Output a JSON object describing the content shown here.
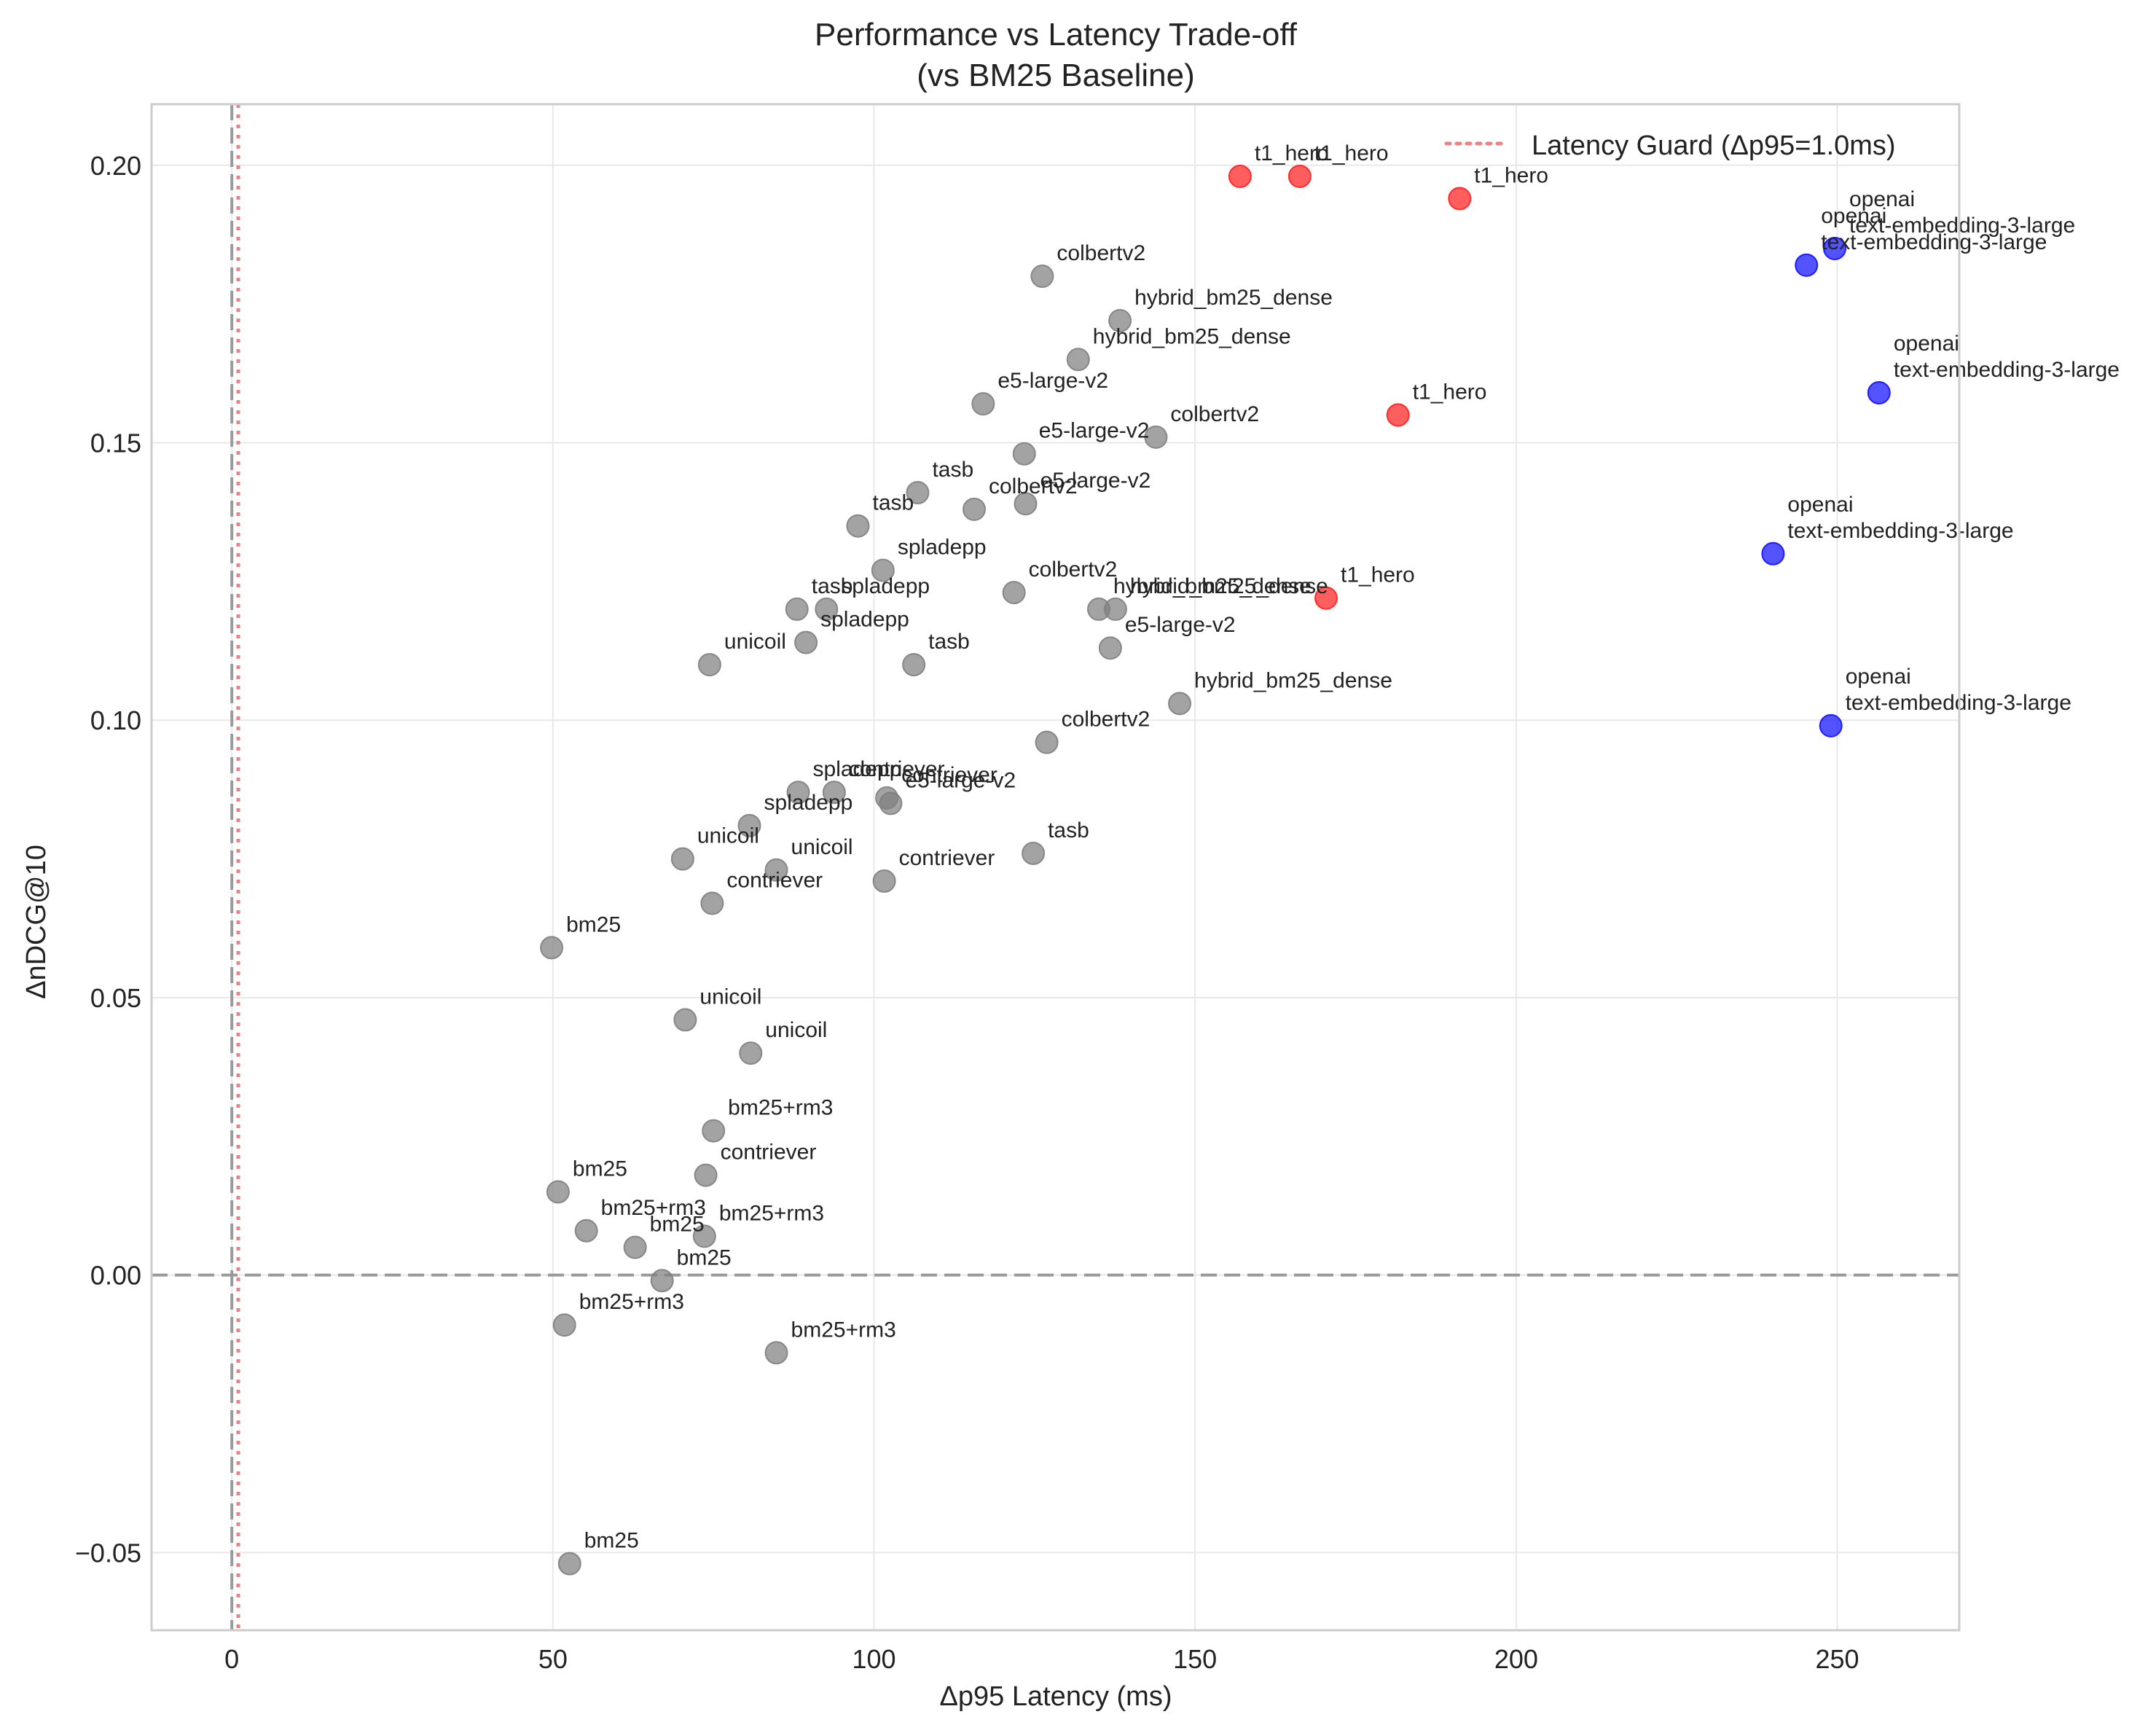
{
  "chart_data": {
    "type": "scatter",
    "title": "Performance vs Latency Trade-off",
    "subtitle": "(vs BM25 Baseline)",
    "xlabel": "Δp95 Latency (ms)",
    "ylabel": "ΔnDCG@10",
    "xlim": [
      -12.5,
      269
    ],
    "ylim": [
      -0.064,
      0.211
    ],
    "xticks": [
      0,
      50,
      100,
      150,
      200,
      250
    ],
    "xtick_labels": [
      "0",
      "50",
      "100",
      "150",
      "200",
      "250"
    ],
    "yticks": [
      -0.05,
      0.0,
      0.05,
      0.1,
      0.15,
      0.2
    ],
    "ytick_labels": [
      "−0.05",
      "0.00",
      "0.05",
      "0.10",
      "0.15",
      "0.20"
    ],
    "grid": true,
    "legend": {
      "position": "top-right",
      "entries": [
        "Latency Guard (Δp95=1.0ms)"
      ]
    },
    "reference_lines": [
      {
        "orientation": "horizontal",
        "value": 0,
        "style": "dashed",
        "color": "#9a9a9a"
      },
      {
        "orientation": "vertical",
        "value": 0,
        "style": "dashed",
        "color": "#9a9a9a"
      },
      {
        "orientation": "vertical",
        "value": 1.0,
        "style": "dotted",
        "color": "#f08080",
        "legend": "Latency Guard (Δp95=1.0ms)"
      }
    ],
    "colors": {
      "t1_hero": "#ff2020",
      "openai": "#1010ff",
      "other": "#808080"
    },
    "points": [
      {
        "x": 157.0,
        "y": 0.198,
        "label": "t1_hero",
        "group": "t1_hero"
      },
      {
        "x": 166.3,
        "y": 0.198,
        "label": "t1_hero",
        "group": "t1_hero"
      },
      {
        "x": 191.2,
        "y": 0.194,
        "label": "t1_hero",
        "group": "t1_hero"
      },
      {
        "x": 181.6,
        "y": 0.155,
        "label": "t1_hero",
        "group": "t1_hero"
      },
      {
        "x": 170.4,
        "y": 0.122,
        "label": "t1_hero",
        "group": "t1_hero"
      },
      {
        "x": 249.6,
        "y": 0.185,
        "label": "openai\ntext-embedding-3-large",
        "group": "openai"
      },
      {
        "x": 245.2,
        "y": 0.182,
        "label": "openai\ntext-embedding-3-large",
        "group": "openai"
      },
      {
        "x": 256.5,
        "y": 0.159,
        "label": "openai\ntext-embedding-3-large",
        "group": "openai"
      },
      {
        "x": 240.0,
        "y": 0.13,
        "label": "openai\ntext-embedding-3-large",
        "group": "openai"
      },
      {
        "x": 249.0,
        "y": 0.099,
        "label": "openai\ntext-embedding-3-large",
        "group": "openai"
      },
      {
        "x": 126.2,
        "y": 0.18,
        "label": "colbertv2",
        "group": "other"
      },
      {
        "x": 138.3,
        "y": 0.172,
        "label": "hybrid_bm25_dense",
        "group": "other"
      },
      {
        "x": 131.8,
        "y": 0.165,
        "label": "hybrid_bm25_dense",
        "group": "other"
      },
      {
        "x": 117.0,
        "y": 0.157,
        "label": "e5-large-v2",
        "group": "other"
      },
      {
        "x": 143.9,
        "y": 0.151,
        "label": "colbertv2",
        "group": "other"
      },
      {
        "x": 123.4,
        "y": 0.148,
        "label": "e5-large-v2",
        "group": "other"
      },
      {
        "x": 106.8,
        "y": 0.141,
        "label": "tasb",
        "group": "other"
      },
      {
        "x": 115.6,
        "y": 0.138,
        "label": "colbertv2",
        "group": "other"
      },
      {
        "x": 123.6,
        "y": 0.139,
        "label": "e5-large-v2",
        "group": "other"
      },
      {
        "x": 97.5,
        "y": 0.135,
        "label": "tasb",
        "group": "other"
      },
      {
        "x": 101.4,
        "y": 0.127,
        "label": "spladepp",
        "group": "other"
      },
      {
        "x": 121.8,
        "y": 0.123,
        "label": "colbertv2",
        "group": "other"
      },
      {
        "x": 88.0,
        "y": 0.12,
        "label": "tasb",
        "group": "other"
      },
      {
        "x": 92.6,
        "y": 0.12,
        "label": "spladepp",
        "group": "other"
      },
      {
        "x": 135.0,
        "y": 0.12,
        "label": "hybrid_bm25_dense",
        "group": "other"
      },
      {
        "x": 137.6,
        "y": 0.12,
        "label": "hybrid_bm25_dense",
        "group": "other"
      },
      {
        "x": 89.4,
        "y": 0.114,
        "label": "spladepp",
        "group": "other"
      },
      {
        "x": 136.8,
        "y": 0.113,
        "label": "e5-large-v2",
        "group": "other"
      },
      {
        "x": 74.4,
        "y": 0.11,
        "label": "unicoil",
        "group": "other"
      },
      {
        "x": 106.2,
        "y": 0.11,
        "label": "tasb",
        "group": "other"
      },
      {
        "x": 147.6,
        "y": 0.103,
        "label": "hybrid_bm25_dense",
        "group": "other"
      },
      {
        "x": 126.9,
        "y": 0.096,
        "label": "colbertv2",
        "group": "other"
      },
      {
        "x": 88.2,
        "y": 0.087,
        "label": "spladepp",
        "group": "other"
      },
      {
        "x": 93.8,
        "y": 0.087,
        "label": "contriever",
        "group": "other"
      },
      {
        "x": 102.0,
        "y": 0.086,
        "label": "contriever",
        "group": "other"
      },
      {
        "x": 102.6,
        "y": 0.085,
        "label": "e5-large-v2",
        "group": "other"
      },
      {
        "x": 80.6,
        "y": 0.081,
        "label": "spladepp",
        "group": "other"
      },
      {
        "x": 70.2,
        "y": 0.075,
        "label": "unicoil",
        "group": "other"
      },
      {
        "x": 84.8,
        "y": 0.073,
        "label": "unicoil",
        "group": "other"
      },
      {
        "x": 124.8,
        "y": 0.076,
        "label": "tasb",
        "group": "other"
      },
      {
        "x": 101.6,
        "y": 0.071,
        "label": "contriever",
        "group": "other"
      },
      {
        "x": 74.8,
        "y": 0.067,
        "label": "contriever",
        "group": "other"
      },
      {
        "x": 49.8,
        "y": 0.059,
        "label": "bm25",
        "group": "other"
      },
      {
        "x": 70.6,
        "y": 0.046,
        "label": "unicoil",
        "group": "other"
      },
      {
        "x": 80.8,
        "y": 0.04,
        "label": "unicoil",
        "group": "other"
      },
      {
        "x": 75.0,
        "y": 0.026,
        "label": "bm25+rm3",
        "group": "other"
      },
      {
        "x": 73.8,
        "y": 0.018,
        "label": "contriever",
        "group": "other"
      },
      {
        "x": 50.8,
        "y": 0.015,
        "label": "bm25",
        "group": "other"
      },
      {
        "x": 55.2,
        "y": 0.008,
        "label": "bm25+rm3",
        "group": "other"
      },
      {
        "x": 73.6,
        "y": 0.007,
        "label": "bm25+rm3",
        "group": "other"
      },
      {
        "x": 62.8,
        "y": 0.005,
        "label": "bm25",
        "group": "other"
      },
      {
        "x": 67.0,
        "y": -0.001,
        "label": "bm25",
        "group": "other"
      },
      {
        "x": 51.8,
        "y": -0.009,
        "label": "bm25+rm3",
        "group": "other"
      },
      {
        "x": 84.8,
        "y": -0.014,
        "label": "bm25+rm3",
        "group": "other"
      },
      {
        "x": 52.6,
        "y": -0.052,
        "label": "bm25",
        "group": "other"
      }
    ]
  }
}
